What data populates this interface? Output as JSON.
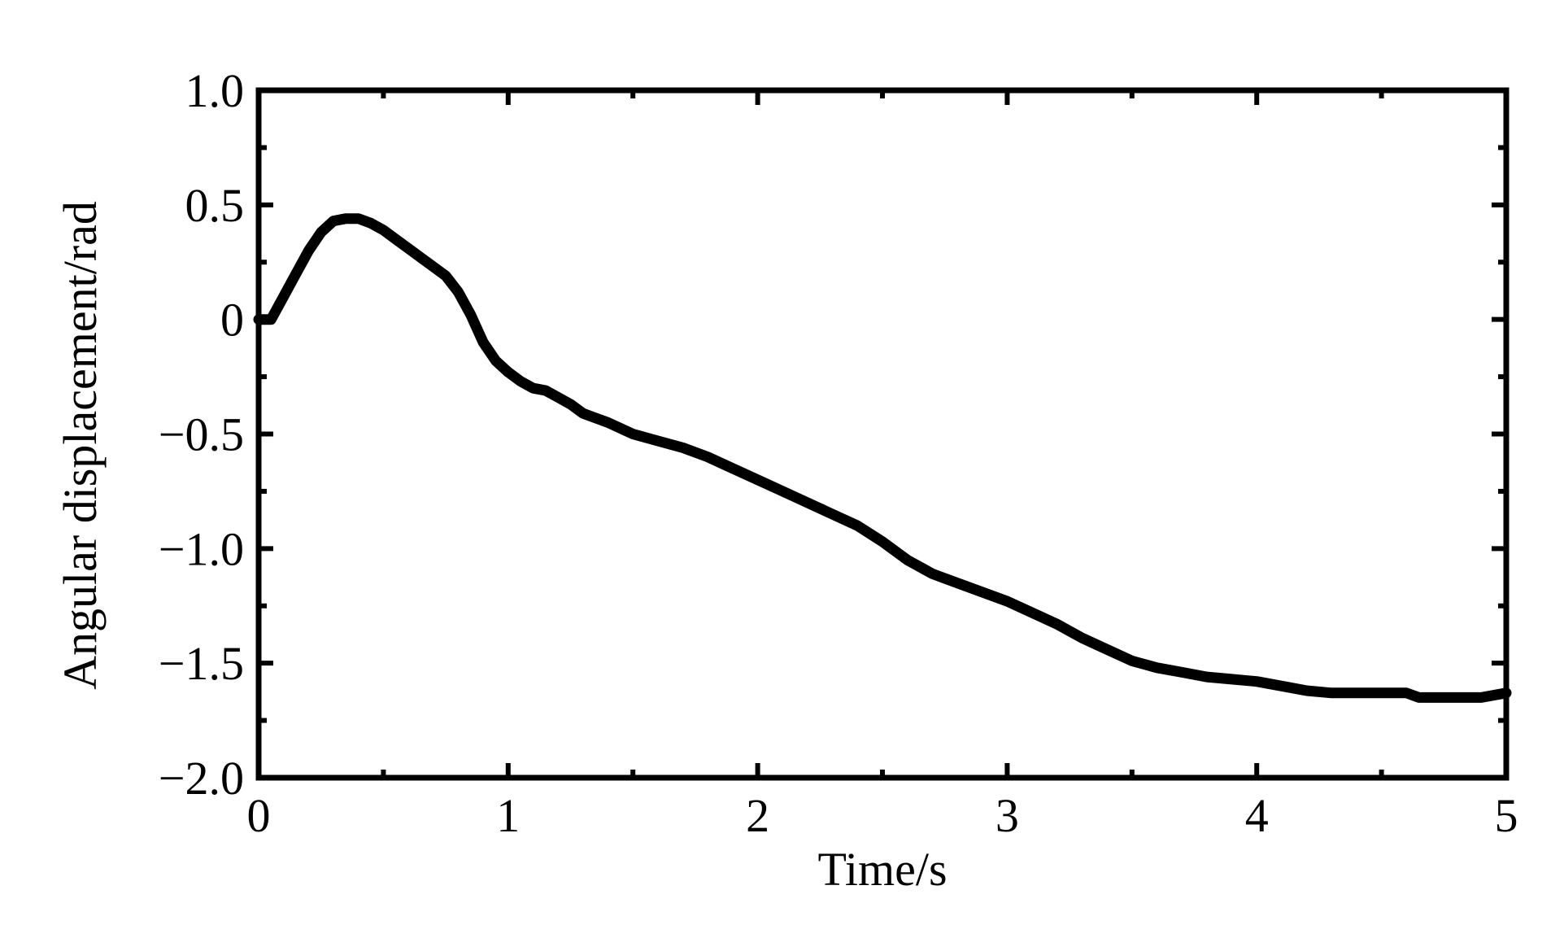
{
  "chart_data": {
    "type": "line",
    "title": "",
    "xlabel": "Time/s",
    "ylabel": "Angular displacement/rad",
    "xlim": [
      0,
      5
    ],
    "ylim": [
      -2.0,
      1.0
    ],
    "grid": false,
    "legend": "none",
    "x_ticks": [
      0,
      1,
      2,
      3,
      4,
      5
    ],
    "x_tick_labels": [
      "0",
      "1",
      "2",
      "3",
      "4",
      "5"
    ],
    "y_ticks": [
      1.0,
      0.5,
      0,
      -0.5,
      -1.0,
      -1.5,
      -2.0
    ],
    "y_tick_labels": [
      "1.0",
      "0.5",
      "0",
      "−0.5",
      "−1.0",
      "−1.5",
      "−2.0"
    ],
    "x_minor_ticks": [
      0.5,
      1.5,
      2.5,
      3.5,
      4.5
    ],
    "y_minor_ticks": [
      0.75,
      0.25,
      -0.25,
      -0.75,
      -1.25,
      -1.75
    ],
    "line_color": "#000000",
    "series": [
      {
        "x": [
          0,
          0.05,
          0.1,
          0.15,
          0.2,
          0.25,
          0.3,
          0.35,
          0.4,
          0.45,
          0.5,
          0.55,
          0.6,
          0.65,
          0.7,
          0.75,
          0.8,
          0.85,
          0.9,
          0.95,
          1.0,
          1.05,
          1.1,
          1.15,
          1.2,
          1.25,
          1.3,
          1.35,
          1.4,
          1.5,
          1.6,
          1.7,
          1.8,
          1.9,
          2.0,
          2.1,
          2.2,
          2.3,
          2.4,
          2.5,
          2.6,
          2.7,
          2.8,
          2.9,
          3.0,
          3.1,
          3.2,
          3.3,
          3.4,
          3.5,
          3.6,
          3.7,
          3.8,
          3.9,
          4.0,
          4.1,
          4.2,
          4.3,
          4.4,
          4.5,
          4.6,
          4.65,
          4.7,
          4.8,
          4.9,
          5.0
        ],
        "y": [
          0.0,
          0.0,
          0.1,
          0.2,
          0.3,
          0.38,
          0.43,
          0.44,
          0.44,
          0.42,
          0.39,
          0.35,
          0.31,
          0.27,
          0.23,
          0.19,
          0.12,
          0.02,
          -0.1,
          -0.18,
          -0.23,
          -0.27,
          -0.3,
          -0.31,
          -0.34,
          -0.37,
          -0.41,
          -0.43,
          -0.45,
          -0.5,
          -0.53,
          -0.56,
          -0.6,
          -0.65,
          -0.7,
          -0.75,
          -0.8,
          -0.85,
          -0.9,
          -0.97,
          -1.05,
          -1.11,
          -1.15,
          -1.19,
          -1.23,
          -1.28,
          -1.33,
          -1.39,
          -1.44,
          -1.49,
          -1.52,
          -1.54,
          -1.56,
          -1.57,
          -1.58,
          -1.6,
          -1.62,
          -1.63,
          -1.63,
          -1.63,
          -1.63,
          -1.65,
          -1.65,
          -1.65,
          -1.65,
          -1.63
        ]
      }
    ]
  }
}
